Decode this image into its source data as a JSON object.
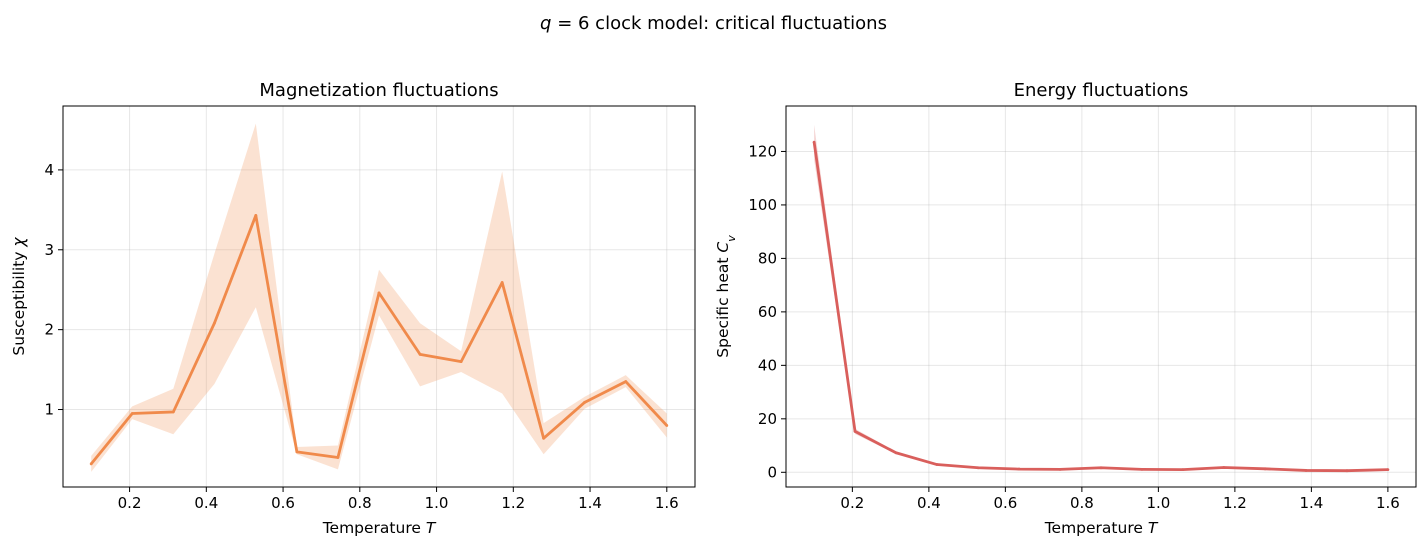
{
  "figure": {
    "suptitle_var": "q",
    "suptitle_eq": " = 6",
    "suptitle_rest": " clock model: critical fluctuations"
  },
  "chart_data": [
    {
      "type": "line",
      "title": "Magnetization fluctuations",
      "xlabel_text": "Temperature ",
      "xlabel_var": "T",
      "ylabel_text": "Susceptibility ",
      "ylabel_var": "χ",
      "x": [
        0.1,
        0.207,
        0.314,
        0.421,
        0.529,
        0.636,
        0.743,
        0.85,
        0.957,
        1.064,
        1.171,
        1.279,
        1.386,
        1.493,
        1.6
      ],
      "series": [
        {
          "values": [
            0.32,
            0.95,
            0.97,
            2.08,
            3.43,
            0.47,
            0.4,
            2.46,
            1.69,
            1.6,
            2.59,
            0.64,
            1.09,
            1.35,
            0.8
          ],
          "band_lower": [
            0.22,
            0.88,
            0.69,
            1.32,
            2.28,
            0.44,
            0.25,
            2.18,
            1.29,
            1.47,
            1.2,
            0.44,
            1.01,
            1.28,
            0.65
          ],
          "band_upper": [
            0.42,
            1.04,
            1.26,
            2.95,
            4.58,
            0.53,
            0.55,
            2.75,
            2.08,
            1.73,
            3.98,
            0.83,
            1.16,
            1.43,
            0.95
          ],
          "color": "#f08a4b"
        }
      ],
      "xlim": [
        0.0265,
        1.6735
      ],
      "ylim": [
        0.03,
        4.8
      ],
      "xticks": [
        0.2,
        0.4,
        0.6,
        0.8,
        1.0,
        1.2,
        1.4,
        1.6
      ],
      "xtick_labels": [
        "0.2",
        "0.4",
        "0.6",
        "0.8",
        "1.0",
        "1.2",
        "1.4",
        "1.6"
      ],
      "yticks": [
        1,
        2,
        3,
        4
      ],
      "ytick_labels": [
        "1",
        "2",
        "3",
        "4"
      ],
      "grid": true
    },
    {
      "type": "line",
      "title": "Energy fluctuations",
      "xlabel_text": "Temperature ",
      "xlabel_var": "T",
      "ylabel_text": "Specific heat ",
      "ylabel_var": "C",
      "ylabel_sub": "v",
      "x": [
        0.1,
        0.207,
        0.314,
        0.421,
        0.529,
        0.636,
        0.743,
        0.85,
        0.957,
        1.064,
        1.171,
        1.279,
        1.386,
        1.493,
        1.6
      ],
      "series": [
        {
          "values": [
            123.5,
            15.3,
            7.3,
            2.9,
            1.7,
            1.2,
            1.1,
            1.7,
            1.1,
            1.0,
            1.8,
            1.3,
            0.7,
            0.6,
            1.0
          ],
          "band_lower": [
            117.0,
            14.3,
            6.9,
            2.5,
            1.4,
            1.0,
            0.9,
            1.4,
            0.9,
            0.8,
            1.5,
            1.1,
            0.5,
            0.4,
            0.8
          ],
          "band_upper": [
            130.0,
            16.3,
            7.7,
            3.3,
            2.0,
            1.4,
            1.3,
            2.0,
            1.3,
            1.2,
            2.1,
            1.5,
            0.9,
            0.8,
            1.2
          ],
          "color": "#d95f5c"
        }
      ],
      "xlim": [
        0.0265,
        1.6735
      ],
      "ylim": [
        -5.5,
        137
      ],
      "xticks": [
        0.2,
        0.4,
        0.6,
        0.8,
        1.0,
        1.2,
        1.4,
        1.6
      ],
      "xtick_labels": [
        "0.2",
        "0.4",
        "0.6",
        "0.8",
        "1.0",
        "1.2",
        "1.4",
        "1.6"
      ],
      "yticks": [
        0,
        20,
        40,
        60,
        80,
        100,
        120
      ],
      "ytick_labels": [
        "0",
        "20",
        "40",
        "60",
        "80",
        "100",
        "120"
      ],
      "grid": true
    }
  ]
}
